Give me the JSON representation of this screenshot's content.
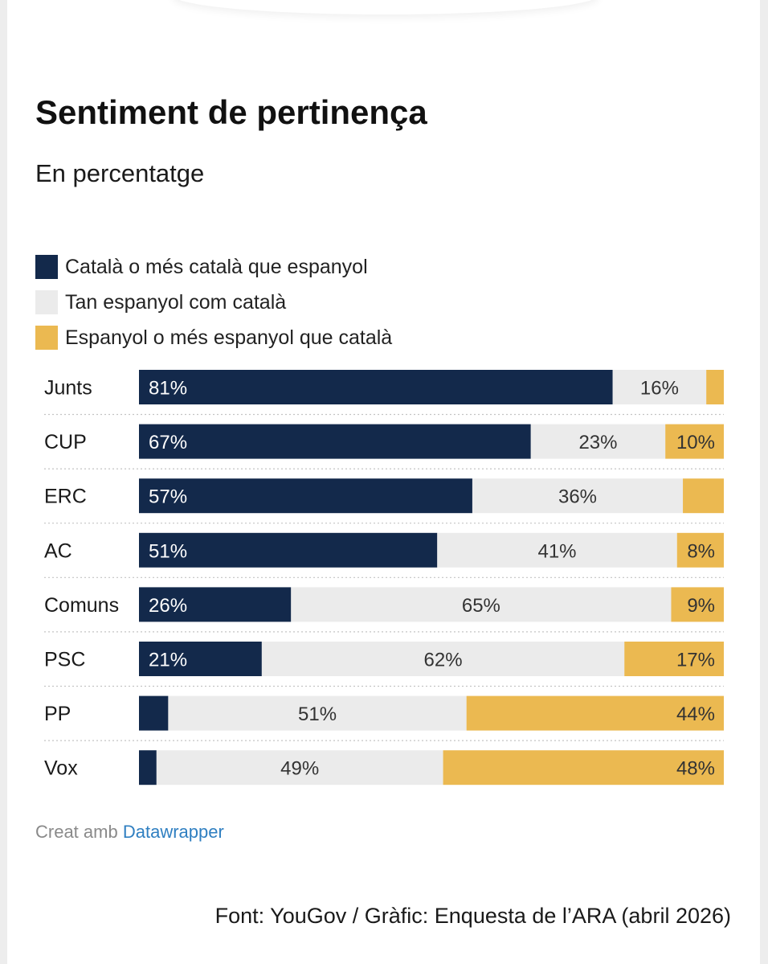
{
  "chart_data": {
    "type": "bar",
    "orientation": "horizontal",
    "stacked": true,
    "title": "Sentiment de pertinença",
    "subtitle": "En percentatge",
    "categories": [
      "Junts",
      "CUP",
      "ERC",
      "AC",
      "Comuns",
      "PSC",
      "PP",
      "Vox"
    ],
    "series": [
      {
        "name": "Català o més català que espanyol",
        "color": "#13294b",
        "values": [
          81,
          67,
          57,
          51,
          26,
          21,
          5,
          3
        ],
        "labels": [
          "81%",
          "67%",
          "57%",
          "51%",
          "26%",
          "21%",
          "",
          ""
        ]
      },
      {
        "name": "Tan espanyol com català",
        "color": "#ebebeb",
        "values": [
          16,
          23,
          36,
          41,
          65,
          62,
          51,
          49
        ],
        "labels": [
          "16%",
          "23%",
          "36%",
          "41%",
          "65%",
          "62%",
          "51%",
          "49%"
        ]
      },
      {
        "name": "Espanyol o més espanyol que català",
        "color": "#ebb951",
        "values": [
          3,
          10,
          7,
          8,
          9,
          17,
          44,
          48
        ],
        "labels": [
          "",
          "10%",
          "",
          "8%",
          "9%",
          "17%",
          "44%",
          "48%"
        ]
      }
    ],
    "xlim": [
      0,
      100
    ],
    "legend_position": "top-left",
    "grid": false
  },
  "footer": {
    "credit_prefix": "Creat amb",
    "credit_link": "Datawrapper",
    "source": "Font: YouGov / Gràfic: Enquesta de l’ARA (abril 2026)"
  }
}
